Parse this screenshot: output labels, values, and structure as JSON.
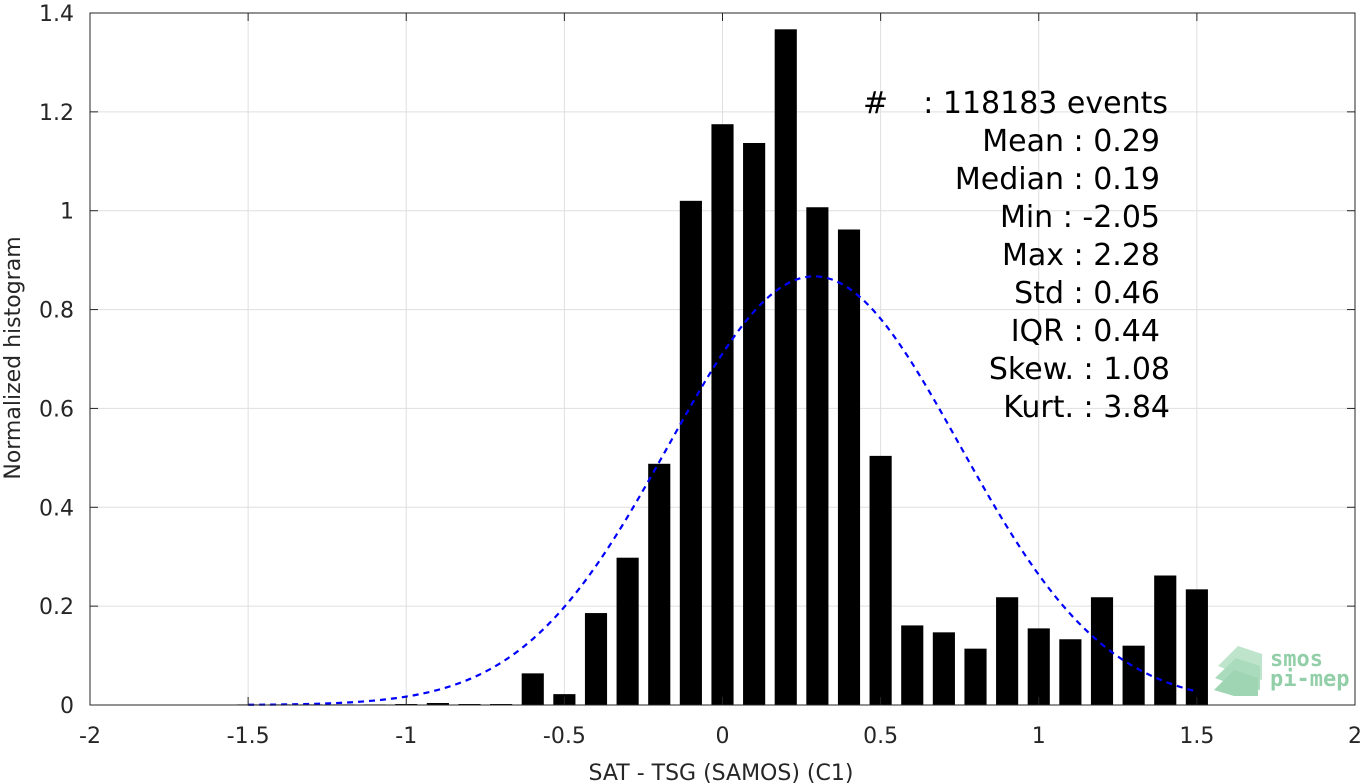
{
  "chart_data": {
    "type": "bar",
    "xlabel": "SAT - TSG (SAMOS) (C1)",
    "ylabel": "Normalized histogram",
    "xlim": [
      -2,
      2
    ],
    "ylim": [
      0,
      1.4
    ],
    "xticks": [
      -2,
      -1.5,
      -1,
      -0.5,
      0,
      0.5,
      1,
      1.5,
      2
    ],
    "xtick_labels": [
      "-2",
      "-1.5",
      "-1",
      "-0.5",
      "0",
      "0.5",
      "1",
      "1.5",
      "2"
    ],
    "yticks": [
      0,
      0.2,
      0.4,
      0.6,
      0.8,
      1,
      1.2,
      1.4
    ],
    "ytick_labels": [
      "0",
      "0.2",
      "0.4",
      "0.6",
      "0.8",
      "1",
      "1.2",
      "1.4"
    ],
    "grid": true,
    "bar_color": "#000000",
    "bar_width": 0.07,
    "series": [
      {
        "x": [
          -1.5,
          -1.4,
          -1.3,
          -1.2,
          -1.1,
          -1.0,
          -0.9,
          -0.8,
          -0.7,
          -0.6,
          -0.5,
          -0.4,
          -0.3,
          -0.2,
          -0.1,
          0.0,
          0.1,
          0.2,
          0.3,
          0.4,
          0.5,
          0.6,
          0.7,
          0.8,
          0.9,
          1.0,
          1.1,
          1.2,
          1.3,
          1.4,
          1.5
        ],
        "values": [
          0.0,
          0.0,
          0.0,
          0.0,
          0.0,
          0.002,
          0.004,
          0.002,
          0.002,
          0.064,
          0.022,
          0.186,
          0.298,
          0.488,
          1.02,
          1.175,
          1.137,
          1.367,
          1.007,
          0.962,
          0.504,
          0.161,
          0.147,
          0.114,
          0.218,
          0.155,
          0.133,
          0.218,
          0.12,
          0.262,
          0.234
        ]
      }
    ],
    "fit_curve": {
      "type": "gaussian",
      "mean": 0.29,
      "std": 0.46,
      "x_range": [
        -1.5,
        1.5
      ],
      "color": "#0000ff",
      "style": "dashed"
    },
    "annotations": {
      "count": {
        "label": "#",
        "value": ": 118183 events"
      },
      "stats": [
        "Mean : 0.29",
        "Median : 0.19",
        "Min : -2.05",
        "Max : 2.28",
        "Std : 0.46",
        "IQR : 0.44",
        "Skew. : 1.08",
        "Kurt. : 3.84"
      ]
    }
  },
  "logo": {
    "line1": "smos",
    "line2": "pi-mep",
    "color": "#7fc79a"
  }
}
